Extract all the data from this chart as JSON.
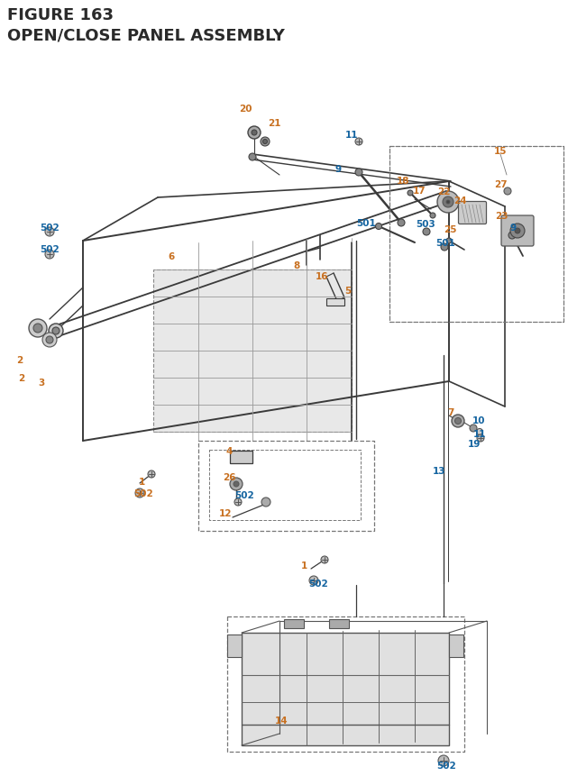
{
  "title_line1": "FIGURE 163",
  "title_line2": "OPEN/CLOSE PANEL ASSEMBLY",
  "bg_color": "#ffffff",
  "orange_color": "#c87020",
  "blue_color": "#1464a0",
  "dark_color": "#2a2a2a",
  "line_color": "#3a3a3a",
  "figsize": [
    6.4,
    8.62
  ],
  "dpi": 100
}
